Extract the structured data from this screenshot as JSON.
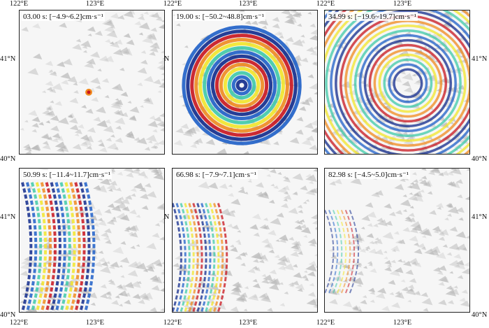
{
  "panels": [
    {
      "label": "03.00 s: [−4.9~6.2]cm·s⁻¹",
      "time_s": 3.0,
      "min": -4.9,
      "max": 6.2
    },
    {
      "label": "19.00 s: [−50.2~48.8]cm·s⁻¹",
      "time_s": 19.0,
      "min": -50.2,
      "max": 48.8
    },
    {
      "label": "34.99 s: [−19.6~19.7]cm·s⁻¹",
      "time_s": 34.99,
      "min": -19.6,
      "max": 19.7
    },
    {
      "label": "50.99 s: [−11.4~11.7]cm·s⁻¹",
      "time_s": 50.99,
      "min": -11.4,
      "max": 11.7
    },
    {
      "label": "66.98 s: [−7.9~7.1]cm·s⁻¹",
      "time_s": 66.98,
      "min": -7.9,
      "max": 7.1
    },
    {
      "label": "82.98 s: [−4.5~5.0]cm·s⁻¹",
      "time_s": 82.98,
      "min": -4.5,
      "max": 5.0
    }
  ],
  "axes": {
    "lon_ticks": [
      "122°E",
      "123°E",
      "122°E",
      "123°E",
      "122°E",
      "123°E"
    ],
    "lat_ticks_top": [
      "41°N",
      "40°N",
      "41°N",
      "40°N"
    ],
    "lat_ticks_bottom": [
      "41°N",
      "40°N",
      "41°N",
      "40°N"
    ]
  },
  "colors": {
    "wave_pos": "#c8141e",
    "wave_pos2": "#f08a1e",
    "wave_mid": "#f2e52a",
    "wave_mid2": "#3ec9a8",
    "wave_neg": "#1e5fc8",
    "wave_neg2": "#102a8c",
    "terrain": "#9a9a9a",
    "background": "#f6f6f6"
  }
}
